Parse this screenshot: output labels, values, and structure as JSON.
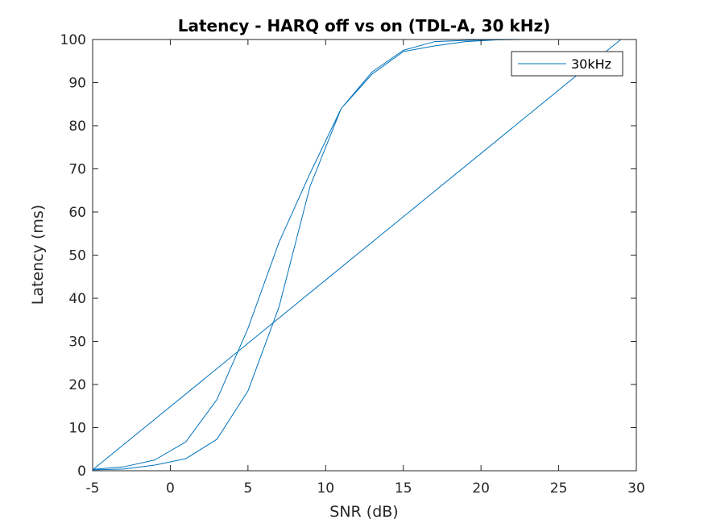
{
  "chart_data": {
    "type": "line",
    "title": "Latency - HARQ off vs on (TDL-A, 30 kHz)",
    "xlabel": "SNR (dB)",
    "ylabel": "Latency (ms)",
    "xlim": [
      -5,
      30
    ],
    "ylim": [
      0,
      100
    ],
    "xticks": [
      -5,
      0,
      5,
      10,
      15,
      20,
      25,
      30
    ],
    "yticks": [
      0,
      10,
      20,
      30,
      40,
      50,
      60,
      70,
      80,
      90,
      100
    ],
    "grid": false,
    "legend_position": "top-right",
    "series": [
      {
        "name": "30kHz",
        "color": "#0072BD",
        "x": [
          -5,
          -3,
          -1,
          1,
          3,
          5,
          7,
          9,
          11,
          13,
          15,
          17,
          19,
          21,
          23,
          25,
          27,
          29,
          -5,
          -3,
          -1,
          1,
          3,
          5,
          7,
          9,
          11,
          13,
          15,
          17,
          19,
          21,
          23,
          25,
          27,
          29
        ],
        "y": [
          0.3,
          0.9,
          2.5,
          6.7,
          16.5,
          33,
          53,
          69,
          84,
          92.5,
          97.5,
          99.5,
          99.8,
          100,
          100,
          100,
          100,
          100,
          0.2,
          0.4,
          1.3,
          2.8,
          7.3,
          18.5,
          38,
          66,
          84,
          92,
          97.2,
          98.5,
          99.5,
          99.9,
          100,
          100,
          100,
          100
        ]
      }
    ]
  }
}
